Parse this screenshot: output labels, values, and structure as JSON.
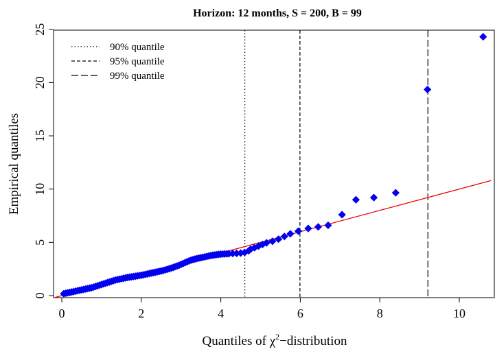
{
  "chart_data": {
    "type": "scatter",
    "title": "Horizon: 12 months, S = 200, B = 99",
    "xlabel_main": "Quantiles of ",
    "xlabel_symbol": "χ",
    "xlabel_sup": "2",
    "xlabel_rest": "−distribution",
    "ylabel": "Empirical quantiles",
    "xlim": [
      0,
      10.8
    ],
    "ylim": [
      0,
      25
    ],
    "xticks": [
      0,
      2,
      4,
      6,
      8,
      10
    ],
    "yticks": [
      0,
      5,
      10,
      15,
      20,
      25
    ],
    "grid": false,
    "legend_position": "top-left",
    "point_color": "#0000ee",
    "line_color": "#ee0000",
    "reference_line": {
      "intercept": 0,
      "slope": 1
    },
    "quantile_lines": [
      {
        "label": "90% quantile",
        "x": 4.605,
        "style": "dotted"
      },
      {
        "label": "95% quantile",
        "x": 5.991,
        "style": "dashed"
      },
      {
        "label": "99% quantile",
        "x": 9.21,
        "style": "longdash"
      }
    ],
    "points": {
      "x": [
        0.05,
        0.1,
        0.15,
        0.2,
        0.25,
        0.3,
        0.35,
        0.4,
        0.45,
        0.5,
        0.55,
        0.6,
        0.65,
        0.7,
        0.75,
        0.8,
        0.85,
        0.9,
        0.95,
        1.0,
        1.05,
        1.1,
        1.15,
        1.2,
        1.25,
        1.3,
        1.35,
        1.4,
        1.45,
        1.5,
        1.55,
        1.6,
        1.65,
        1.7,
        1.75,
        1.8,
        1.85,
        1.9,
        1.95,
        2.0,
        2.05,
        2.1,
        2.15,
        2.2,
        2.25,
        2.3,
        2.35,
        2.4,
        2.45,
        2.5,
        2.55,
        2.6,
        2.65,
        2.7,
        2.75,
        2.8,
        2.85,
        2.9,
        2.95,
        3.0,
        3.05,
        3.1,
        3.15,
        3.2,
        3.25,
        3.3,
        3.35,
        3.4,
        3.45,
        3.5,
        3.55,
        3.6,
        3.65,
        3.7,
        3.75,
        3.8,
        3.85,
        3.9,
        3.95,
        4.0,
        4.05,
        4.1,
        4.15,
        4.2,
        4.3,
        4.4,
        4.5,
        4.6,
        4.7,
        4.75,
        4.85,
        4.95,
        5.05,
        5.15,
        5.3,
        5.45,
        5.6,
        5.75,
        5.95,
        6.2,
        6.45,
        6.7,
        7.05,
        7.4,
        7.85,
        8.4,
        9.2,
        10.6
      ],
      "y": [
        0.18,
        0.22,
        0.26,
        0.3,
        0.34,
        0.38,
        0.42,
        0.46,
        0.5,
        0.54,
        0.58,
        0.62,
        0.66,
        0.7,
        0.74,
        0.8,
        0.86,
        0.92,
        0.98,
        1.04,
        1.1,
        1.16,
        1.22,
        1.28,
        1.34,
        1.4,
        1.46,
        1.5,
        1.54,
        1.58,
        1.62,
        1.66,
        1.7,
        1.73,
        1.76,
        1.79,
        1.82,
        1.85,
        1.88,
        1.91,
        1.95,
        1.99,
        2.03,
        2.07,
        2.11,
        2.15,
        2.19,
        2.23,
        2.27,
        2.31,
        2.36,
        2.41,
        2.46,
        2.52,
        2.58,
        2.64,
        2.71,
        2.78,
        2.85,
        2.93,
        3.01,
        3.09,
        3.17,
        3.25,
        3.32,
        3.38,
        3.43,
        3.48,
        3.52,
        3.56,
        3.6,
        3.64,
        3.68,
        3.72,
        3.76,
        3.79,
        3.82,
        3.85,
        3.87,
        3.89,
        3.9,
        3.91,
        3.92,
        3.93,
        3.95,
        3.97,
        3.99,
        4.05,
        4.2,
        4.35,
        4.5,
        4.65,
        4.8,
        4.95,
        5.1,
        5.3,
        5.55,
        5.8,
        6.05,
        6.3,
        6.45,
        6.6,
        7.6,
        9.0,
        9.2,
        9.65,
        19.35,
        24.3
      ]
    }
  }
}
